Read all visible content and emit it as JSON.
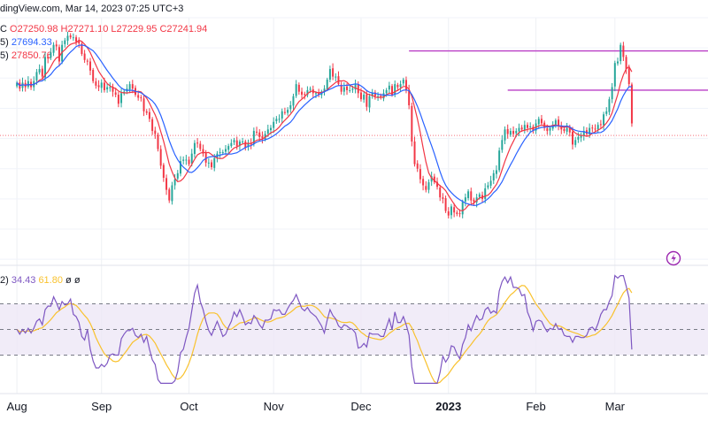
{
  "header": {
    "source_line": "dingView.com, Mar 14, 2023 07:25 UTC+3",
    "ohlc_prefix": "C",
    "ohlc": {
      "open": "O27250.98",
      "high": "H27271.10",
      "low": "L27229.95",
      "close": "C27241.94"
    },
    "ma_line_1": {
      "label": "5)",
      "value": "27694.33"
    },
    "ma_line_2": {
      "label": "5)",
      "value": "27850.76"
    }
  },
  "oscillator_header": {
    "label": "2)",
    "value1": "34.43",
    "value2": "61.80",
    "extra1": "ø",
    "extra2": "ø"
  },
  "colors": {
    "up": "#26a69a",
    "down": "#f23645",
    "ma_fast": "#f23645",
    "ma_slow": "#2962ff",
    "resistance": "#ba3ec6",
    "osc_line": "#7e57c2",
    "osc_signal": "#f9c22e",
    "osc_band": "#ede7f6"
  },
  "icons": {
    "flash": "flash-icon"
  },
  "chart_data": [
    {
      "type": "candlestick",
      "title": "",
      "x_tick_labels": [
        "Aug",
        "Sep",
        "Oct",
        "Nov",
        "Dec",
        "2023",
        "Feb",
        "Mar"
      ],
      "x_tick_positions": [
        0,
        30,
        61,
        91,
        122,
        153,
        184,
        212
      ],
      "x_range": [
        -6,
        245
      ],
      "y_range": [
        17800,
        26000
      ],
      "grid": "on",
      "closes": [
        23850,
        23650,
        23850,
        23700,
        23900,
        23700,
        23900,
        24200,
        24300,
        24050,
        24700,
        24650,
        24850,
        25100,
        25050,
        24550,
        25100,
        25250,
        25400,
        25350,
        25350,
        25200,
        25150,
        24800,
        24600,
        24550,
        24250,
        23900,
        23750,
        23700,
        23850,
        23600,
        23700,
        23700,
        23550,
        23450,
        23150,
        23500,
        23550,
        23650,
        23800,
        23650,
        23450,
        23350,
        23350,
        22900,
        22850,
        22650,
        22250,
        22150,
        21650,
        21100,
        20700,
        20300,
        19950,
        20450,
        20650,
        20850,
        21250,
        21300,
        21300,
        21150,
        21500,
        21850,
        21850,
        21650,
        21500,
        21200,
        21200,
        21050,
        21350,
        21500,
        21550,
        21550,
        21650,
        21750,
        21850,
        21950,
        21750,
        21900,
        21900,
        21700,
        21850,
        21800,
        22250,
        22200,
        22050,
        22000,
        22150,
        22300,
        22350,
        22550,
        22650,
        22650,
        22900,
        22850,
        22950,
        23100,
        23400,
        23800,
        23550,
        23450,
        23450,
        23600,
        23650,
        23500,
        23500,
        23450,
        23550,
        23650,
        23950,
        24300,
        24050,
        24050,
        23800,
        23550,
        23700,
        23600,
        23600,
        23650,
        23800,
        23500,
        23300,
        23450,
        23050,
        23400,
        23500,
        23400,
        23400,
        23350,
        23500,
        23600,
        23750,
        23450,
        23800,
        23700,
        23800,
        23950,
        23600,
        23100,
        21900,
        21150,
        21000,
        20650,
        20450,
        20300,
        20550,
        20750,
        20550,
        20400,
        20050,
        20000,
        19600,
        19450,
        19750,
        19550,
        19500,
        19500,
        19900,
        20050,
        20250,
        19950,
        19900,
        20050,
        20150,
        20000,
        20350,
        20450,
        20600,
        20850,
        20950,
        21600,
        21950,
        22300,
        22150,
        22250,
        22150,
        22250,
        22350,
        22300,
        22450,
        22350,
        22400,
        22250,
        22500,
        22650,
        22500,
        22350,
        22250,
        22350,
        22450,
        22600,
        22400,
        22300,
        22250,
        22350,
        22200,
        21800,
        21950,
        22050,
        22100,
        22250,
        22150,
        22350,
        22350,
        22300,
        22450,
        22450,
        22800,
        22900,
        23300,
        23700,
        24500,
        24550,
        25100,
        24700,
        24300,
        23800,
        22500
      ],
      "series": [
        {
          "name": "",
          "kind": "ma_fast"
        },
        {
          "name": "",
          "kind": "ma_slow"
        }
      ],
      "horizontal_lines": [
        {
          "y": 24900,
          "x_from": 139,
          "x_to": 245
        },
        {
          "y": 23600,
          "x_from": 174,
          "x_to": 245
        }
      ],
      "dotted_level": 22100
    },
    {
      "type": "line",
      "title": "",
      "y_range": [
        0,
        100
      ],
      "band": [
        30,
        70
      ],
      "mid_level": 50,
      "series": [
        {
          "name": "",
          "kind": "oscillator"
        },
        {
          "name": "",
          "kind": "signal"
        }
      ],
      "last_values": [
        34.43,
        61.8
      ]
    }
  ]
}
